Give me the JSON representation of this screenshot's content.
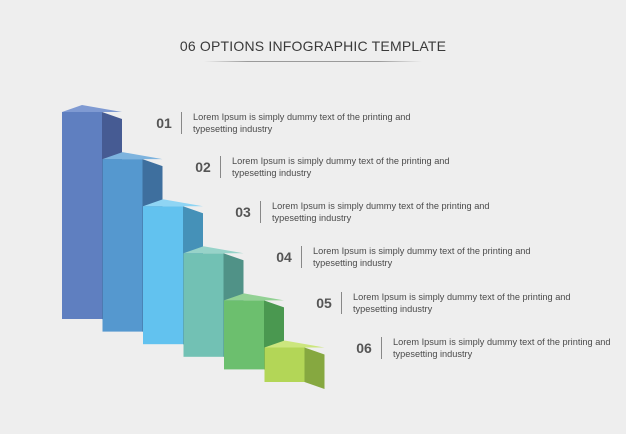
{
  "title": "06 OPTIONS INFOGRAPHIC TEMPLATE",
  "options": [
    {
      "number": "01",
      "text": "Lorem Ipsum is simply dummy text of the printing and typesetting industry",
      "level": 6,
      "colors": {
        "front": "#5f7fc0",
        "side": "#465b93",
        "top": "#7f9ad2"
      }
    },
    {
      "number": "02",
      "text": "Lorem Ipsum is simply dummy text of the printing and typesetting industry",
      "level": 5,
      "colors": {
        "front": "#5598cf",
        "side": "#3e6f9e",
        "top": "#7db3de"
      }
    },
    {
      "number": "03",
      "text": "Lorem Ipsum is simply dummy text of the printing and typesetting industry",
      "level": 4,
      "colors": {
        "front": "#62c2ef",
        "side": "#4591b8",
        "top": "#8fd5f4"
      }
    },
    {
      "number": "04",
      "text": "Lorem Ipsum is simply dummy text of the printing and typesetting industry",
      "level": 3,
      "colors": {
        "front": "#72c1b4",
        "side": "#509287",
        "top": "#97d3c9"
      }
    },
    {
      "number": "05",
      "text": "Lorem Ipsum is simply dummy text of the printing and typesetting industry",
      "level": 2,
      "colors": {
        "front": "#6cbf6e",
        "side": "#4a9850",
        "top": "#92d194"
      }
    },
    {
      "number": "06",
      "text": "Lorem Ipsum is simply dummy text of the printing and typesetting industry",
      "level": 1,
      "colors": {
        "front": "#b3d657",
        "side": "#86a840",
        "top": "#cce67e"
      }
    }
  ]
}
